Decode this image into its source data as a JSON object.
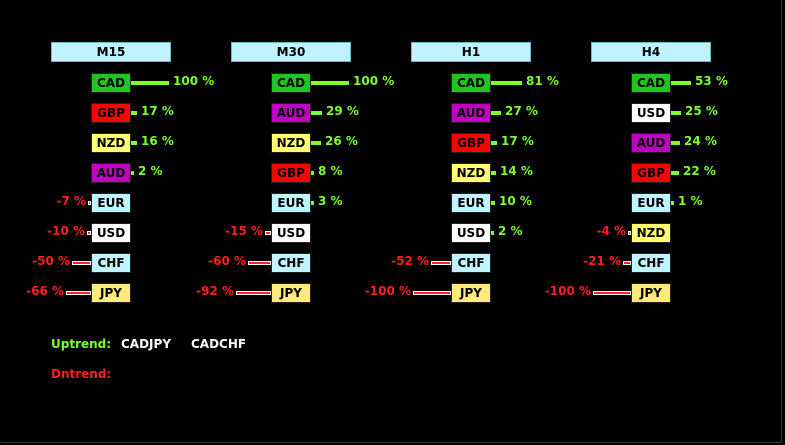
{
  "colors": {
    "positive_text": "#7cff2a",
    "negative_text": "#ff1e1e",
    "header_bg": "#bff3ff",
    "uptrend_label": "#7cff2a",
    "dntrend_label": "#ff1e1e"
  },
  "currency_colors": {
    "CAD": {
      "bg": "#1ec51e",
      "fg": "#000000"
    },
    "GBP": {
      "bg": "#ff0000",
      "fg": "#000000"
    },
    "NZD": {
      "bg": "#ffff70",
      "fg": "#000000"
    },
    "AUD": {
      "bg": "#c000c0",
      "fg": "#000000"
    },
    "EUR": {
      "bg": "#bff3ff",
      "fg": "#000000"
    },
    "USD": {
      "bg": "#ffffff",
      "fg": "#000000"
    },
    "CHF": {
      "bg": "#bff3ff",
      "fg": "#000000"
    },
    "JPY": {
      "bg": "#ffe97a",
      "fg": "#000000"
    }
  },
  "panels": [
    {
      "title": "M15",
      "rows": [
        {
          "currency": "CAD",
          "value": 100,
          "label": "100 %"
        },
        {
          "currency": "GBP",
          "value": 17,
          "label": "17 %"
        },
        {
          "currency": "NZD",
          "value": 16,
          "label": "16 %"
        },
        {
          "currency": "AUD",
          "value": 2,
          "label": "2 %"
        },
        {
          "currency": "EUR",
          "value": -7,
          "label": "-7 %"
        },
        {
          "currency": "USD",
          "value": -10,
          "label": "-10 %"
        },
        {
          "currency": "CHF",
          "value": -50,
          "label": "-50 %"
        },
        {
          "currency": "JPY",
          "value": -66,
          "label": "-66 %"
        }
      ]
    },
    {
      "title": "M30",
      "rows": [
        {
          "currency": "CAD",
          "value": 100,
          "label": "100 %"
        },
        {
          "currency": "AUD",
          "value": 29,
          "label": "29 %"
        },
        {
          "currency": "NZD",
          "value": 26,
          "label": "26 %"
        },
        {
          "currency": "GBP",
          "value": 8,
          "label": "8 %"
        },
        {
          "currency": "EUR",
          "value": 3,
          "label": "3 %"
        },
        {
          "currency": "USD",
          "value": -15,
          "label": "-15 %"
        },
        {
          "currency": "CHF",
          "value": -60,
          "label": "-60 %"
        },
        {
          "currency": "JPY",
          "value": -92,
          "label": "-92 %"
        }
      ]
    },
    {
      "title": "H1",
      "rows": [
        {
          "currency": "CAD",
          "value": 81,
          "label": "81 %"
        },
        {
          "currency": "AUD",
          "value": 27,
          "label": "27 %"
        },
        {
          "currency": "GBP",
          "value": 17,
          "label": "17 %"
        },
        {
          "currency": "NZD",
          "value": 14,
          "label": "14 %"
        },
        {
          "currency": "EUR",
          "value": 10,
          "label": "10 %"
        },
        {
          "currency": "USD",
          "value": 2,
          "label": "2 %"
        },
        {
          "currency": "CHF",
          "value": -52,
          "label": "-52 %"
        },
        {
          "currency": "JPY",
          "value": -100,
          "label": "-100 %"
        }
      ]
    },
    {
      "title": "H4",
      "rows": [
        {
          "currency": "CAD",
          "value": 53,
          "label": "53 %"
        },
        {
          "currency": "USD",
          "value": 25,
          "label": "25 %"
        },
        {
          "currency": "AUD",
          "value": 24,
          "label": "24 %"
        },
        {
          "currency": "GBP",
          "value": 22,
          "label": "22 %"
        },
        {
          "currency": "EUR",
          "value": 1,
          "label": "1 %"
        },
        {
          "currency": "NZD",
          "value": -4,
          "label": "-4 %"
        },
        {
          "currency": "CHF",
          "value": -21,
          "label": "-21 %"
        },
        {
          "currency": "JPY",
          "value": -100,
          "label": "-100 %"
        }
      ]
    }
  ],
  "trends": {
    "uptrend_label": "Uptrend:",
    "uptrend_pairs": [
      "CADJPY",
      "CADCHF"
    ],
    "dntrend_label": "Dntrend:",
    "dntrend_pairs": []
  }
}
